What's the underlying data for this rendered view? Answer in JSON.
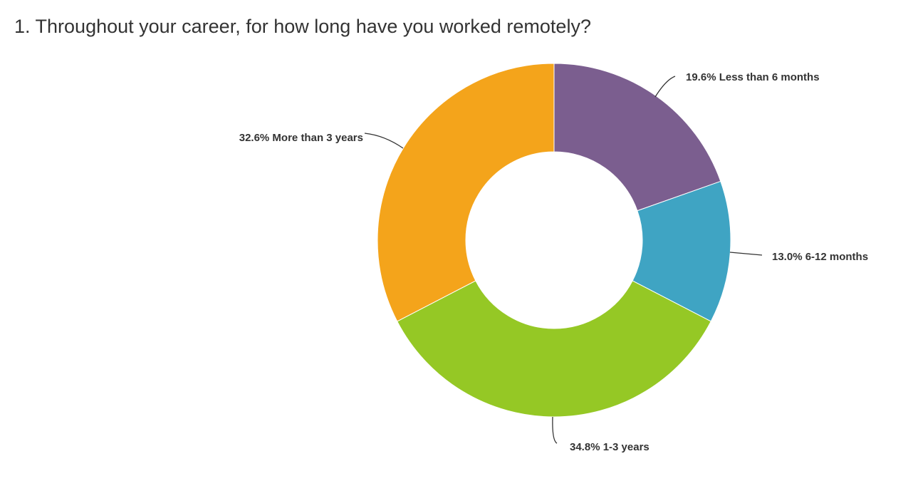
{
  "question": {
    "title": "1. Throughout your career, for how long have you worked remotely?"
  },
  "chart_data": {
    "type": "pie",
    "variant": "donut",
    "start_angle_deg": 0,
    "direction": "clockwise",
    "slices": [
      {
        "name": "Less than 6 months",
        "value": 19.6,
        "label": "19.6% Less than 6 months",
        "color": "#7b5e8f"
      },
      {
        "name": "6-12 months",
        "value": 13.0,
        "label": "13.0% 6-12 months",
        "color": "#3fa4c3"
      },
      {
        "name": "1-3 years",
        "value": 34.8,
        "label": "34.8% 1-3 years",
        "color": "#95c825"
      },
      {
        "name": "More than 3 years",
        "value": 32.6,
        "label": "32.6% More than 3 years",
        "color": "#f4a41b"
      }
    ]
  }
}
